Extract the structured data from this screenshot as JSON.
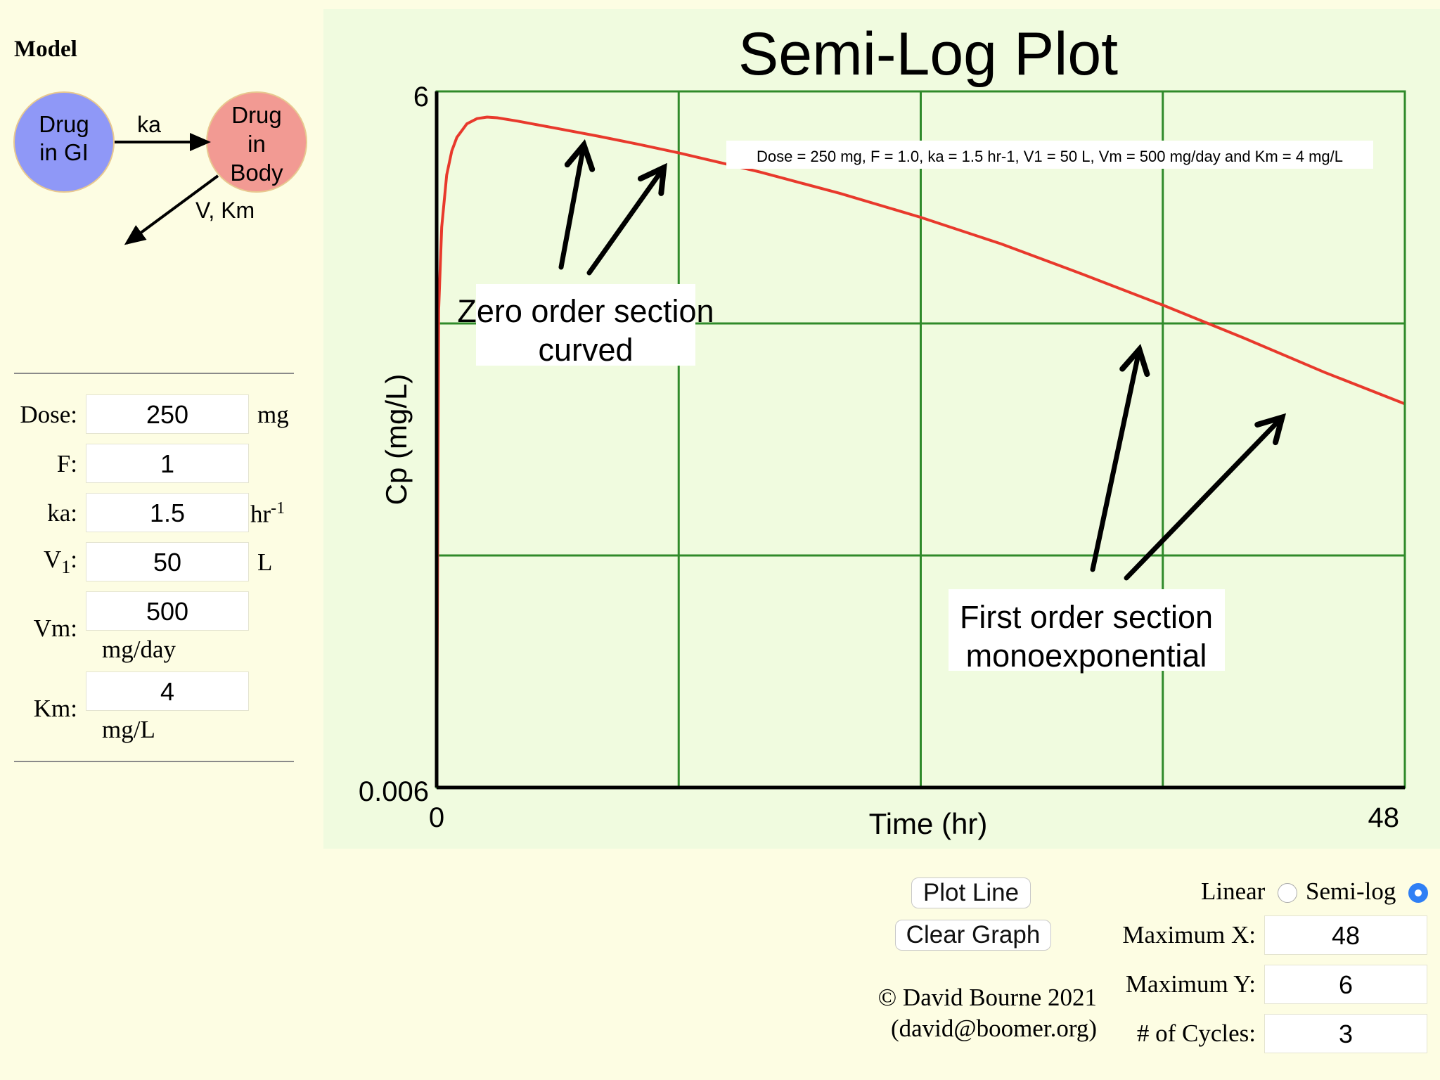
{
  "model": {
    "title": "Model",
    "compartments": {
      "gi": [
        "Drug",
        "in GI"
      ],
      "body": [
        "Drug",
        "in",
        "Body"
      ]
    },
    "rate_labels": {
      "absorption": "ka",
      "elimination": "V, Km"
    },
    "colors": {
      "gi": "#8f98f7",
      "body": "#f29a93",
      "border": "#e8c890"
    }
  },
  "params": {
    "dose": {
      "label": "Dose:",
      "value": "250",
      "unit": "mg"
    },
    "f": {
      "label": "F:",
      "value": "1"
    },
    "ka": {
      "label": "ka:",
      "value": "1.5",
      "unit": "hr",
      "unit_sup": "-1"
    },
    "v1": {
      "label": "V",
      "label_sub": "1",
      "label_after": ":",
      "value": "50",
      "unit": "L"
    },
    "vm": {
      "label": "Vm:",
      "value": "500",
      "unit": "mg/day"
    },
    "km": {
      "label": "Km:",
      "value": "4",
      "unit": "mg/L"
    }
  },
  "chart_data": {
    "type": "line",
    "title": "Semi-Log Plot",
    "xlabel": "Time (hr)",
    "ylabel": "Cp (mg/L)",
    "xlim": [
      0,
      48
    ],
    "ylim": [
      0.006,
      6
    ],
    "yscale": "log",
    "x_tick_labels": [
      "0",
      "48"
    ],
    "y_tick_labels": [
      "6",
      "0.006"
    ],
    "grid": true,
    "annotation": "Dose = 250 mg, F = 1.0, ka = 1.5 hr-1, V1 = 50 L, Vm = 500 mg/day and Km = 4 mg/L",
    "callouts": [
      {
        "lines": [
          "Zero order section",
          "curved"
        ]
      },
      {
        "lines": [
          "First order section",
          "monoexponential"
        ]
      }
    ],
    "series": [
      {
        "x": [
          0,
          0.1,
          0.25,
          0.5,
          0.75,
          1,
          1.5,
          2,
          2.5,
          3,
          4,
          6,
          8,
          10,
          12,
          16,
          20,
          24,
          28,
          32,
          36,
          40,
          44,
          48
        ],
        "y": [
          0.006,
          0.69,
          1.56,
          2.62,
          3.32,
          3.8,
          4.35,
          4.58,
          4.65,
          4.62,
          4.47,
          4.15,
          3.85,
          3.55,
          3.26,
          2.7,
          2.18,
          1.72,
          1.32,
          0.98,
          0.72,
          0.52,
          0.37,
          0.27
        ]
      }
    ],
    "colors": {
      "line": "#e8392c",
      "grid": "#2f8a2a",
      "background": "#f0fbdf"
    }
  },
  "controls": {
    "plot_line": "Plot Line",
    "clear_graph": "Clear Graph",
    "scale_linear": "Linear",
    "scale_semilog": "Semi-log",
    "selected_scale": "semi-log",
    "max_x": {
      "label": "Maximum X:",
      "value": "48"
    },
    "max_y": {
      "label": "Maximum Y:",
      "value": "6"
    },
    "cycles": {
      "label": "# of Cycles:",
      "value": "3"
    },
    "copyright": [
      "© David Bourne 2021",
      "(david@boomer.org)"
    ]
  }
}
